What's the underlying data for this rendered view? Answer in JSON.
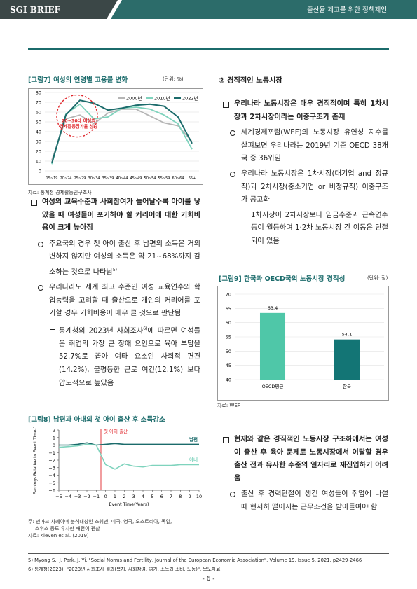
{
  "header": {
    "brand": "SGI BRIEF",
    "title": "출산율 제고를 위한 정책제언"
  },
  "left": {
    "heading": "여성의 교육수준과 사회참여가 늘어날수록 아이를 낳았을 때 여성들이 포기해야 할 커리어에 대한 기회비용이 크게 높아짐",
    "items": [
      {
        "text": "주요국의 경우 첫 아이 출산 후 남편의 소득은 거의 변하지 않지만 여성의 소득은 약 21~68%까지 감소하는 것으로 나타남",
        "sup": "5)"
      },
      {
        "text": "우리나라도 세계 최고 수준인 여성 교육연수와 학업능력을 고려할 때 출산으로 개인의 커리어를 포기할 경우 기회비용이 매우 클 것으로 판단됨",
        "sub_items": [
          {
            "text_before": "통계청의 2023년 사회조사",
            "sup": "6)",
            "text_after": "에 따르면 여성들은 취업의 가장 큰 장애 요인으로 육아 부담을 52.7%로 꼽아 여타 요소인 사회적 편견(14.2%), 불평등한 근로 여건(12.1%) 보다 압도적으로 높았음"
          }
        ]
      }
    ]
  },
  "right": {
    "section_title": "② 경직적인 노동시장",
    "heading1": "우리나라 노동시장은 매우 경직적이며 특히 1차시장과 2차시장이라는 이중구조가 존재",
    "items1": [
      {
        "text": "세계경제포럼(WEF)의 노동시장 유연성 지수를 살펴보면 우리나라는 2019년 기준 OECD 38개국 중 36위임"
      },
      {
        "text": "우리나라 노동시장은 1차시장(대기업 and 정규직)과 2차시장(중소기업 or 비정규직) 이중구조가 공고화",
        "sub_items": [
          "1차시장이 2차시장보다 임금수준과 근속연수 등이 월등하며 1·2차 노동시장 간 이동은 단절되어 있음"
        ]
      }
    ],
    "heading2": "현재와 같은 경직적인 노동시장 구조하에서는 여성이 출산 후 육아 문제로 노동시장에서 이탈할 경우 출산 전과 유사한 수준의 일자리로 재진입하기 어려움",
    "items2": [
      {
        "text": "출산 후 경력단절이 생긴 여성들이 취업에 나설 때 현저히 떨어지는 근무조건을 받아들여야 함"
      }
    ]
  },
  "footnotes": [
    "5) Myong S., J. Park, J. Yi, \"Social Norms and Fertility, Journal of the European Economic Association\", Volume 19, Issue 5, 2021, p2429-2466",
    "6) 통계청(2023), \"2023년 사회조사 결과(복지, 사회참여, 여가, 소득과 소비, 노동)\", 보도자료"
  ],
  "page_number": "- 6 -",
  "chart_data": [
    {
      "type": "line",
      "title": "[그림7] 여성의 연령별 고용률 변화",
      "unit": "(단위: %)",
      "categories": [
        "15~19",
        "20~24",
        "25~29",
        "30~34",
        "35~39",
        "40~44",
        "45~49",
        "50~54",
        "55~59",
        "60~64",
        "65+"
      ],
      "series": [
        {
          "name": "2000년",
          "color": "#b5b5b5",
          "values": [
            11,
            53,
            57,
            48,
            59,
            63,
            63,
            56,
            49,
            46,
            30
          ]
        },
        {
          "name": "2010년",
          "color": "#7fd3bd",
          "values": [
            7,
            58,
            68,
            53,
            55,
            64,
            65,
            63,
            57,
            48,
            22
          ]
        },
        {
          "name": "2022년",
          "color": "#1b6b6b",
          "values": [
            8,
            57,
            72,
            69,
            62,
            64,
            67,
            68,
            66,
            55,
            28
          ]
        }
      ],
      "ylim": [
        0,
        80
      ],
      "yticks": [
        0,
        10,
        20,
        30,
        40,
        50,
        60,
        70,
        80
      ],
      "grid": true,
      "legend": "top-right",
      "annotation": [
        "20~30대 여성의",
        "경제활동참가율 상승"
      ],
      "source": "자료: 통계청 경제활동인구조사"
    },
    {
      "type": "line",
      "title": "[그림8] 남편과 아내의 첫 아이 출산 후 소득감소",
      "x": [
        -5,
        -4,
        -3,
        -2,
        -1,
        0,
        1,
        2,
        3,
        4,
        5,
        6,
        7,
        8,
        9,
        10
      ],
      "series": [
        {
          "name": "남편",
          "color": "#1b6b6b",
          "values": [
            0,
            0,
            0.1,
            0.3,
            0,
            0.1,
            0.2,
            0.1,
            0.1,
            0.1,
            0.1,
            0.1,
            0.1,
            0.1,
            0.1,
            0.1
          ]
        },
        {
          "name": "아내",
          "color": "#7fd3bd",
          "values": [
            -0.3,
            -0.2,
            -0.1,
            0.1,
            0,
            -2.6,
            -3.2,
            -2.5,
            -2.8,
            -2.9,
            -2.7,
            -2.7,
            -2.7,
            -2.6,
            -2.6,
            -2.6
          ]
        }
      ],
      "xlim": [
        -5,
        10
      ],
      "xticks": [
        {
          "value": -5,
          "label": "−5"
        },
        {
          "value": -4,
          "label": "−4"
        },
        {
          "value": -3,
          "label": "−3"
        },
        {
          "value": -2,
          "label": "−2"
        },
        {
          "value": -1,
          "label": "−1"
        },
        0,
        1,
        2,
        3,
        4,
        5,
        6,
        7,
        8,
        9,
        10
      ],
      "ylim": [
        -6,
        2
      ],
      "yticks": [
        {
          "value": -6,
          "label": "−6"
        },
        {
          "value": -5,
          "label": "−5"
        },
        {
          "value": -4,
          "label": "−4"
        },
        {
          "value": -3,
          "label": "−3"
        },
        {
          "value": -2,
          "label": "−2"
        },
        {
          "value": -1,
          "label": "−1"
        },
        0,
        1,
        2
      ],
      "xlabel": "Event Time(Years)",
      "ylabel": "Earnings Relative to Event Time-1",
      "annotation": "첫 아이 출산",
      "notes": [
        "주: 덴마크 사례이며 분석대상인 스웨덴, 미국, 영국, 오스트리아, 독일,",
        "스위스 등도 유사한 패턴이 관찰"
      ],
      "source": "자료: Kleven et al. (2019)"
    },
    {
      "type": "bar",
      "title": "[그림9] 한국과 OECD국의 노동시장 경직성",
      "unit": "(단위: 점)",
      "categories": [
        "OECD평균",
        "한국"
      ],
      "values": [
        63.4,
        54.1
      ],
      "colors": [
        "#4fc7a8",
        "#137575"
      ],
      "ylim": [
        40,
        70
      ],
      "yticks": [
        40,
        45,
        50,
        55,
        60,
        65,
        70
      ],
      "grid": true,
      "source": "자료: WEF"
    }
  ]
}
